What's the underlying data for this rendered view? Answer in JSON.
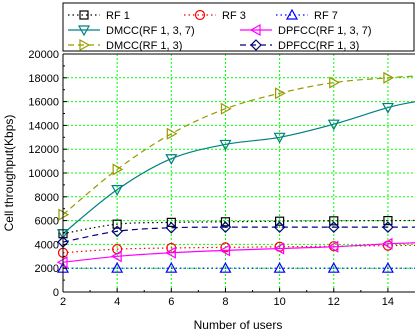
{
  "chart_data": {
    "type": "line",
    "xlabel": "Number of users",
    "ylabel": "Cell throughput(Kbps)",
    "xlim": [
      2,
      15
    ],
    "ylim": [
      0,
      20000
    ],
    "x_ticks": [
      2,
      4,
      6,
      8,
      10,
      12,
      14
    ],
    "y_ticks": [
      0,
      2000,
      4000,
      6000,
      8000,
      10000,
      12000,
      14000,
      16000,
      18000,
      20000
    ],
    "grid": true,
    "legend_placement": "top",
    "series": [
      {
        "name": "RF 1",
        "color": "#000000",
        "dash": "dotted",
        "marker": "square",
        "x": [
          2,
          4,
          6,
          8,
          10,
          12,
          14
        ],
        "values": [
          4900,
          5700,
          5850,
          5900,
          5950,
          5980,
          6000
        ]
      },
      {
        "name": "RF 3",
        "color": "#ff0000",
        "dash": "dotted",
        "marker": "circle",
        "x": [
          2,
          4,
          6,
          8,
          10,
          12,
          14
        ],
        "values": [
          3300,
          3600,
          3700,
          3750,
          3800,
          3850,
          3900
        ]
      },
      {
        "name": "RF 7",
        "color": "#0000ff",
        "dash": "dotted",
        "marker": "triangle-up",
        "x": [
          2,
          4,
          6,
          8,
          10,
          12,
          14
        ],
        "values": [
          2000,
          2000,
          2000,
          2000,
          2000,
          2000,
          2000
        ]
      },
      {
        "name": "DMCC(RF 1, 3, 7)",
        "color": "#008080",
        "dash": "solid",
        "marker": "triangle-down",
        "x": [
          2,
          4,
          6,
          8,
          10,
          12,
          14
        ],
        "values": [
          4900,
          8600,
          11200,
          12400,
          13000,
          14100,
          15500
        ]
      },
      {
        "name": "DMCC(RF 1, 3)",
        "color": "#999900",
        "dash": "dashed",
        "marker": "triangle-right",
        "x": [
          2,
          4,
          6,
          8,
          10,
          12,
          14
        ],
        "values": [
          6500,
          10300,
          13300,
          15400,
          16700,
          17600,
          18000
        ]
      },
      {
        "name": "DPFCC(RF 1, 3, 7)",
        "color": "#ff00ff",
        "dash": "solid",
        "marker": "triangle-left",
        "x": [
          2,
          4,
          6,
          8,
          10,
          12,
          14
        ],
        "values": [
          2500,
          3000,
          3300,
          3500,
          3650,
          3800,
          4050
        ]
      },
      {
        "name": "DPFCC(RF 1, 3)",
        "color": "#000080",
        "dash": "dashed",
        "marker": "diamond",
        "x": [
          2,
          4,
          6,
          8,
          10,
          12,
          14
        ],
        "values": [
          4200,
          5100,
          5400,
          5450,
          5450,
          5450,
          5450
        ]
      }
    ]
  }
}
